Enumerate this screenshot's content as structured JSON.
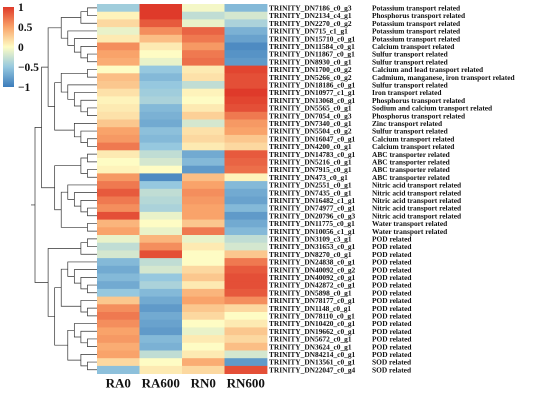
{
  "chart_data": {
    "type": "heatmap",
    "title": "",
    "columns": [
      "RA0",
      "RA600",
      "RN0",
      "RN600"
    ],
    "color_scale": {
      "min": -1,
      "max": 1,
      "ticks": [
        "1",
        "0.5",
        "0",
        "−0.5",
        "−1"
      ],
      "colors": {
        "low": "#3c7cbb",
        "mid": "#fefcc4",
        "high": "#df3a2a"
      }
    },
    "rows": [
      {
        "gene": "TRINITY_DN7186_c0_g3",
        "function": "Potassium transport related",
        "values": [
          -0.45,
          1.0,
          -0.05,
          -0.6
        ]
      },
      {
        "gene": "TRINITY_DN2134_c4_g1",
        "function": "Phosphorus transport related",
        "values": [
          0.05,
          1.0,
          -0.3,
          -0.2
        ]
      },
      {
        "gene": "TRINITY_DN2270_c0_g2",
        "function": "Potassium transport related",
        "values": [
          0.2,
          0.85,
          -0.1,
          -0.4
        ]
      },
      {
        "gene": "TRINITY_DN715_c1_g1",
        "function": "Potassium transport related",
        "values": [
          -0.1,
          0.6,
          0.8,
          -0.65
        ]
      },
      {
        "gene": "TRINITY_DN15710_c0_g1",
        "function": "Potassium transport related",
        "values": [
          0.1,
          0.35,
          0.7,
          -0.75
        ]
      },
      {
        "gene": "TRINITY_DN11584_c0_g1",
        "function": "Calcium transport related",
        "values": [
          0.6,
          0.1,
          0.55,
          -0.9
        ]
      },
      {
        "gene": "TRINITY_DN11867_c0_g1",
        "function": "Sulfur transport related",
        "values": [
          0.5,
          0.0,
          0.7,
          -0.85
        ]
      },
      {
        "gene": "TRINITY_DN8930_c0_g1",
        "function": "Sulfur transport related",
        "values": [
          0.45,
          -0.1,
          0.75,
          -0.8
        ]
      },
      {
        "gene": "TRINITY_DN1700_c0_g2",
        "function": "Calcium and lead transport related",
        "values": [
          0.0,
          -0.5,
          0.1,
          0.95
        ]
      },
      {
        "gene": "TRINITY_DN5266_c0_g2",
        "function": "Cadmium, manganese, iron transport related",
        "values": [
          0.35,
          -0.6,
          0.15,
          0.9
        ]
      },
      {
        "gene": "TRINITY_DN18186_c0_g1",
        "function": "Sulfur transport related",
        "values": [
          0.3,
          -0.5,
          -0.3,
          0.9
        ]
      },
      {
        "gene": "TRINITY_DN10977_c1_g1",
        "function": "Iron transport related",
        "values": [
          0.15,
          -0.45,
          0.05,
          1.0
        ]
      },
      {
        "gene": "TRINITY_DN13068_c0_g1",
        "function": "Phosphorus transport related",
        "values": [
          0.05,
          -0.4,
          0.0,
          0.95
        ]
      },
      {
        "gene": "TRINITY_DN5565_c0_g1",
        "function": "Sodium and calcium transport related",
        "values": [
          0.1,
          -0.6,
          0.1,
          0.9
        ]
      },
      {
        "gene": "TRINITY_DN7054_c0_g3",
        "function": "Phosphorus transport related",
        "values": [
          0.15,
          -0.65,
          0.25,
          0.7
        ]
      },
      {
        "gene": "TRINITY_DN7340_c0_g1",
        "function": "Zinc transport related",
        "values": [
          0.3,
          -0.7,
          -0.2,
          0.55
        ]
      },
      {
        "gene": "TRINITY_DN5504_c0_g2",
        "function": "Sulfur transport related",
        "values": [
          0.5,
          -0.55,
          0.15,
          0.5
        ]
      },
      {
        "gene": "TRINITY_DN16047_c0_g1",
        "function": "Calcium transport related",
        "values": [
          0.55,
          -0.6,
          0.2,
          0.3
        ]
      },
      {
        "gene": "TRINITY_DN4200_c0_g1",
        "function": "Calcium transport related",
        "values": [
          0.7,
          -0.5,
          0.1,
          0.2
        ]
      },
      {
        "gene": "TRINITY_DN14783_c0_g1",
        "function": "ABC transporter related",
        "values": [
          0.1,
          -0.3,
          -0.7,
          0.85
        ]
      },
      {
        "gene": "TRINITY_DN5216_c0_g1",
        "function": "ABC transporter related",
        "values": [
          0.0,
          -0.2,
          -0.6,
          0.8
        ]
      },
      {
        "gene": "TRINITY_DN7915_c0_g1",
        "function": "ABC transporter related",
        "values": [
          0.05,
          0.0,
          -0.8,
          0.75
        ]
      },
      {
        "gene": "TRINITY_DN473_c0_g1",
        "function": "ABC transporter related",
        "values": [
          0.55,
          -0.9,
          0.35,
          0.05
        ]
      },
      {
        "gene": "TRINITY_DN2551_c0_g1",
        "function": "Nitric acid transport related",
        "values": [
          0.7,
          -0.5,
          0.5,
          -0.6
        ]
      },
      {
        "gene": "TRINITY_DN7435_c0_g1",
        "function": "Nitric acid transport related",
        "values": [
          0.85,
          -0.3,
          0.6,
          -0.7
        ]
      },
      {
        "gene": "TRINITY_DN16482_c1_g1",
        "function": "Nitric acid transport related",
        "values": [
          0.7,
          -0.35,
          0.55,
          -0.75
        ]
      },
      {
        "gene": "TRINITY_DN74977_c0_g1",
        "function": "Nitric acid transport related",
        "values": [
          0.6,
          -0.4,
          0.5,
          -0.6
        ]
      },
      {
        "gene": "TRINITY_DN20796_c0_g3",
        "function": "Nitric acid transport related",
        "values": [
          0.9,
          -0.1,
          0.5,
          -0.8
        ]
      },
      {
        "gene": "TRINITY_DN11775_c0_g1",
        "function": "Water transport related",
        "values": [
          0.4,
          0.0,
          0.3,
          -0.7
        ]
      },
      {
        "gene": "TRINITY_DN10056_c1_g1",
        "function": "Water transport related",
        "values": [
          0.5,
          -0.1,
          0.7,
          -0.6
        ]
      },
      {
        "gene": "TRINITY_DN3109_c3_g1",
        "function": "POD related",
        "values": [
          -0.1,
          0.4,
          -0.1,
          -0.3
        ]
      },
      {
        "gene": "TRINITY_DN31653_c0_g1",
        "function": "POD related",
        "values": [
          -0.3,
          0.6,
          0.1,
          -0.2
        ]
      },
      {
        "gene": "TRINITY_DN8270_c0_g1",
        "function": "POD related",
        "values": [
          -0.2,
          0.9,
          0.0,
          0.3
        ]
      },
      {
        "gene": "TRINITY_DN24838_c0_g1",
        "function": "POD related",
        "values": [
          -0.6,
          -0.3,
          0.0,
          0.7
        ]
      },
      {
        "gene": "TRINITY_DN40092_c0_g2",
        "function": "POD related",
        "values": [
          -0.7,
          -0.2,
          0.2,
          0.85
        ]
      },
      {
        "gene": "TRINITY_DN40092_c0_g1",
        "function": "POD related",
        "values": [
          -0.6,
          -0.5,
          0.3,
          0.9
        ]
      },
      {
        "gene": "TRINITY_DN42872_c0_g1",
        "function": "POD related",
        "values": [
          -0.7,
          -0.4,
          0.1,
          0.9
        ]
      },
      {
        "gene": "TRINITY_DN5898_c0_g1",
        "function": "POD related",
        "values": [
          -0.5,
          -0.6,
          0.4,
          0.85
        ]
      },
      {
        "gene": "TRINITY_DN78177_c0_g1",
        "function": "POD related",
        "values": [
          0.3,
          -0.7,
          0.5,
          0.6
        ]
      },
      {
        "gene": "TRINITY_DN1148_c0_g1",
        "function": "POD related",
        "values": [
          0.6,
          -0.8,
          0.3,
          0.2
        ]
      },
      {
        "gene": "TRINITY_DN78110_c0_g1",
        "function": "POD related",
        "values": [
          0.7,
          -0.7,
          0.2,
          0.0
        ]
      },
      {
        "gene": "TRINITY_DN10420_c0_g1",
        "function": "POD related",
        "values": [
          0.6,
          -0.75,
          0.0,
          0.1
        ]
      },
      {
        "gene": "TRINITY_DN19662_c0_g1",
        "function": "POD related",
        "values": [
          0.5,
          -0.8,
          -0.1,
          0.3
        ]
      },
      {
        "gene": "TRINITY_DN5672_c0_g1",
        "function": "POD related",
        "values": [
          0.55,
          -0.6,
          0.1,
          0.2
        ]
      },
      {
        "gene": "TRINITY_DN3624_c0_g1",
        "function": "POD related",
        "values": [
          0.45,
          -0.65,
          0.0,
          0.35
        ]
      },
      {
        "gene": "TRINITY_DN84214_c0_g1",
        "function": "POD related",
        "values": [
          0.5,
          -0.3,
          0.1,
          -0.2
        ]
      },
      {
        "gene": "TRINITY_DN13561_c0_g1",
        "function": "SOD related",
        "values": [
          0.2,
          0.0,
          0.45,
          -0.8
        ]
      },
      {
        "gene": "TRINITY_DN22047_c0_g4",
        "function": "SOD related",
        "values": [
          -0.55,
          0.1,
          0.2,
          0.9
        ]
      }
    ]
  }
}
